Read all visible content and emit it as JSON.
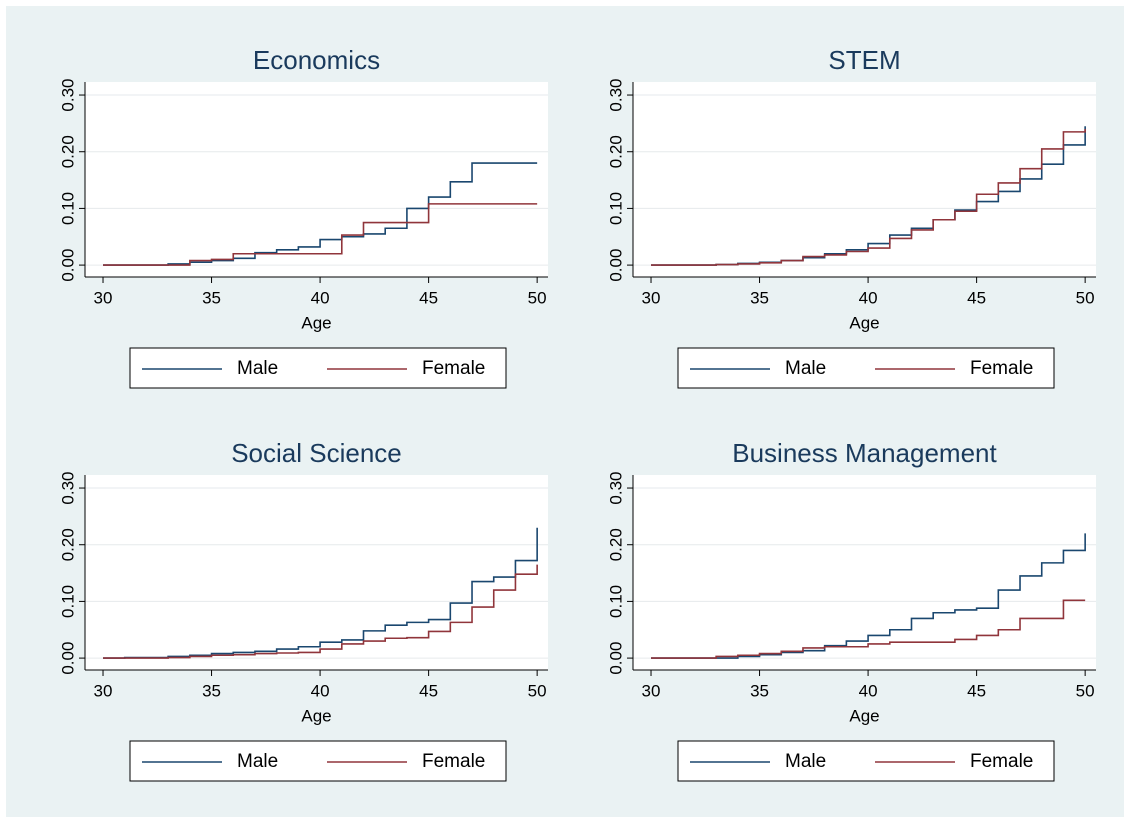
{
  "chart_data": [
    {
      "type": "line",
      "title": "Economics",
      "xlabel": "Age",
      "drawstyle": "steps-post",
      "legend": "bottom",
      "grid": true,
      "x": [
        30,
        31,
        32,
        33,
        34,
        35,
        36,
        37,
        38,
        39,
        40,
        41,
        42,
        43,
        44,
        45,
        46,
        47,
        48,
        49,
        50
      ],
      "series": [
        {
          "name": "Male",
          "color": "#1a476f",
          "values": [
            0,
            0,
            0,
            0.002,
            0.005,
            0.008,
            0.012,
            0.022,
            0.027,
            0.032,
            0.045,
            0.05,
            0.055,
            0.065,
            0.1,
            0.12,
            0.147,
            0.18,
            0.18,
            0.18,
            0.18
          ]
        },
        {
          "name": "Female",
          "color": "#90353b",
          "values": [
            0,
            0,
            0,
            0,
            0.008,
            0.01,
            0.02,
            0.02,
            0.02,
            0.02,
            0.02,
            0.053,
            0.075,
            0.075,
            0.075,
            0.108,
            0.108,
            0.108,
            0.108,
            0.108,
            0.108
          ]
        }
      ],
      "xlim": [
        29.17,
        50.5
      ],
      "ylim": [
        -0.021,
        0.323
      ],
      "xticks": [
        30,
        35,
        40,
        45,
        50
      ],
      "yticks": [
        {
          "value": 0,
          "label": "0.00"
        },
        {
          "value": 0.1,
          "label": "0.10"
        },
        {
          "value": 0.2,
          "label": "0.20"
        },
        {
          "value": 0.3,
          "label": "0.30"
        }
      ]
    },
    {
      "type": "line",
      "title": "STEM",
      "xlabel": "Age",
      "drawstyle": "steps-post",
      "legend": "bottom",
      "grid": true,
      "x": [
        30,
        31,
        32,
        33,
        34,
        35,
        36,
        37,
        38,
        39,
        40,
        41,
        42,
        43,
        44,
        45,
        46,
        47,
        48,
        49,
        50
      ],
      "series": [
        {
          "name": "Male",
          "color": "#1a476f",
          "values": [
            0,
            0,
            0,
            0.001,
            0.003,
            0.005,
            0.008,
            0.013,
            0.02,
            0.027,
            0.038,
            0.053,
            0.065,
            0.08,
            0.097,
            0.112,
            0.13,
            0.152,
            0.178,
            0.212,
            0.245
          ]
        },
        {
          "name": "Female",
          "color": "#90353b",
          "values": [
            0,
            0,
            0,
            0.001,
            0.002,
            0.004,
            0.008,
            0.015,
            0.018,
            0.024,
            0.03,
            0.047,
            0.062,
            0.08,
            0.095,
            0.125,
            0.145,
            0.17,
            0.205,
            0.235,
            0.24
          ]
        }
      ],
      "xlim": [
        29.17,
        50.5
      ],
      "ylim": [
        -0.021,
        0.323
      ],
      "xticks": [
        30,
        35,
        40,
        45,
        50
      ],
      "yticks": [
        {
          "value": 0,
          "label": "0.00"
        },
        {
          "value": 0.1,
          "label": "0.10"
        },
        {
          "value": 0.2,
          "label": "0.20"
        },
        {
          "value": 0.3,
          "label": "0.30"
        }
      ]
    },
    {
      "type": "line",
      "title": "Social Science",
      "xlabel": "Age",
      "drawstyle": "steps-post",
      "legend": "bottom",
      "grid": true,
      "x": [
        30,
        31,
        32,
        33,
        34,
        35,
        36,
        37,
        38,
        39,
        40,
        41,
        42,
        43,
        44,
        45,
        46,
        47,
        48,
        49,
        50
      ],
      "series": [
        {
          "name": "Male",
          "color": "#1a476f",
          "values": [
            0,
            0.001,
            0.001,
            0.003,
            0.005,
            0.008,
            0.01,
            0.012,
            0.016,
            0.02,
            0.028,
            0.032,
            0.048,
            0.058,
            0.063,
            0.068,
            0.097,
            0.135,
            0.143,
            0.172,
            0.23
          ]
        },
        {
          "name": "Female",
          "color": "#90353b",
          "values": [
            0,
            0,
            0,
            0.001,
            0.003,
            0.005,
            0.006,
            0.008,
            0.009,
            0.01,
            0.016,
            0.025,
            0.03,
            0.035,
            0.036,
            0.047,
            0.063,
            0.09,
            0.12,
            0.148,
            0.165
          ]
        }
      ],
      "xlim": [
        29.17,
        50.5
      ],
      "ylim": [
        -0.021,
        0.323
      ],
      "xticks": [
        30,
        35,
        40,
        45,
        50
      ],
      "yticks": [
        {
          "value": 0,
          "label": "0.00"
        },
        {
          "value": 0.1,
          "label": "0.10"
        },
        {
          "value": 0.2,
          "label": "0.20"
        },
        {
          "value": 0.3,
          "label": "0.30"
        }
      ]
    },
    {
      "type": "line",
      "title": "Business Management",
      "xlabel": "Age",
      "drawstyle": "steps-post",
      "legend": "bottom",
      "grid": true,
      "x": [
        30,
        31,
        32,
        33,
        34,
        35,
        36,
        37,
        38,
        39,
        40,
        41,
        42,
        43,
        44,
        45,
        46,
        47,
        48,
        49,
        50
      ],
      "series": [
        {
          "name": "Male",
          "color": "#1a476f",
          "values": [
            0,
            0,
            0,
            0,
            0.003,
            0.006,
            0.01,
            0.013,
            0.022,
            0.03,
            0.04,
            0.05,
            0.07,
            0.08,
            0.085,
            0.088,
            0.12,
            0.145,
            0.168,
            0.19,
            0.22
          ]
        },
        {
          "name": "Female",
          "color": "#90353b",
          "values": [
            0,
            0,
            0,
            0.003,
            0.005,
            0.008,
            0.012,
            0.018,
            0.02,
            0.02,
            0.025,
            0.028,
            0.028,
            0.028,
            0.033,
            0.04,
            0.05,
            0.07,
            0.07,
            0.102,
            0.102
          ]
        }
      ],
      "xlim": [
        29.17,
        50.5
      ],
      "ylim": [
        -0.021,
        0.323
      ],
      "xticks": [
        30,
        35,
        40,
        45,
        50
      ],
      "yticks": [
        {
          "value": 0,
          "label": "0.00"
        },
        {
          "value": 0.1,
          "label": "0.10"
        },
        {
          "value": 0.2,
          "label": "0.20"
        },
        {
          "value": 0.3,
          "label": "0.30"
        }
      ]
    }
  ]
}
